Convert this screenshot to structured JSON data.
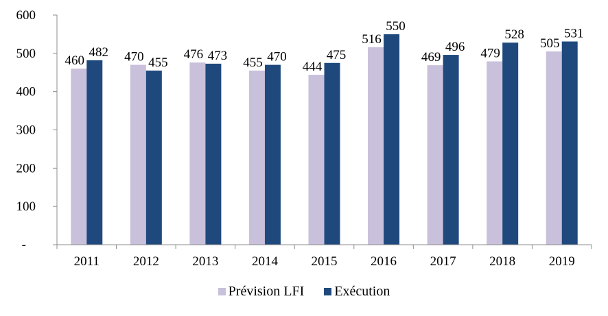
{
  "chart_data": {
    "type": "bar",
    "title": "",
    "xlabel": "",
    "ylabel": "",
    "categories": [
      "2011",
      "2012",
      "2013",
      "2014",
      "2015",
      "2016",
      "2017",
      "2018",
      "2019"
    ],
    "series": [
      {
        "name": "Prévision LFI",
        "color": "#C9C0DB",
        "values": [
          460,
          470,
          476,
          455,
          444,
          516,
          469,
          479,
          505
        ]
      },
      {
        "name": "Exécution",
        "color": "#1F497D",
        "values": [
          482,
          455,
          473,
          470,
          475,
          550,
          496,
          528,
          531
        ]
      }
    ],
    "ylim": [
      0,
      600
    ],
    "yticks": [
      0,
      100,
      200,
      300,
      400,
      500,
      600
    ],
    "ytick_labels": [
      "-",
      "100",
      "200",
      "300",
      "400",
      "500",
      "600"
    ],
    "grid": false,
    "legend_position": "bottom",
    "data_labels": true
  }
}
